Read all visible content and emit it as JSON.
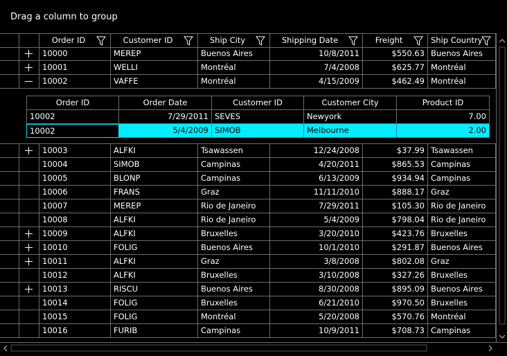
{
  "group_drop_area": "Drag a column to group",
  "grid": {
    "columns": [
      "Order ID",
      "Customer ID",
      "Ship City",
      "Shipping Date",
      "Freight",
      "Ship Country"
    ],
    "rows": [
      {
        "expandable": true,
        "cells": [
          "10000",
          "MEREP",
          "Buenos Aires",
          "10/8/2011",
          "$550.63",
          "Buenos Aires"
        ]
      },
      {
        "expandable": true,
        "cells": [
          "10001",
          "WELLI",
          "Montréal",
          "7/4/2008",
          "$625.77",
          "Montréal"
        ]
      },
      {
        "expandable": true,
        "expanded": true,
        "cells": [
          "10002",
          "VAFFE",
          "Montréal",
          "4/15/2009",
          "$462.49",
          "Montréal"
        ],
        "detail": {
          "columns": [
            "Order ID",
            "Order Date",
            "Customer ID",
            "Customer City",
            "Product ID"
          ],
          "rows": [
            {
              "cells": [
                "10002",
                "7/29/2011",
                "SEVES",
                "Newyork",
                "7.00"
              ]
            },
            {
              "selected": true,
              "cells": [
                "10002",
                "5/4/2009",
                "SIMOB",
                "Melbourne",
                "2.00"
              ]
            }
          ]
        }
      },
      {
        "expandable": true,
        "cells": [
          "10003",
          "ALFKI",
          "Tsawassen",
          "12/24/2008",
          "$37.99",
          "Tsawassen"
        ]
      },
      {
        "cells": [
          "10004",
          "SIMOB",
          "Campinas",
          "4/20/2011",
          "$865.53",
          "Campinas"
        ]
      },
      {
        "cells": [
          "10005",
          "BLONP",
          "Campinas",
          "6/13/2009",
          "$934.94",
          "Campinas"
        ]
      },
      {
        "cells": [
          "10006",
          "FRANS",
          "Graz",
          "11/11/2010",
          "$888.17",
          "Graz"
        ]
      },
      {
        "cells": [
          "10007",
          "MEREP",
          "Rio de Janeiro",
          "7/29/2011",
          "$105.30",
          "Rio de Janeiro"
        ]
      },
      {
        "cells": [
          "10008",
          "ALFKI",
          "Rio de Janeiro",
          "5/4/2009",
          "$798.04",
          "Rio de Janeiro"
        ]
      },
      {
        "expandable": true,
        "cells": [
          "10009",
          "ALFKI",
          "Bruxelles",
          "3/20/2010",
          "$423.76",
          "Bruxelles"
        ]
      },
      {
        "expandable": true,
        "cells": [
          "10010",
          "FOLIG",
          "Buenos Aires",
          "10/1/2010",
          "$291.87",
          "Buenos Aires"
        ]
      },
      {
        "expandable": true,
        "cells": [
          "10011",
          "ALFKI",
          "Graz",
          "3/8/2008",
          "$802.08",
          "Graz"
        ]
      },
      {
        "cells": [
          "10012",
          "ALFKI",
          "Bruxelles",
          "3/10/2008",
          "$327.26",
          "Bruxelles"
        ]
      },
      {
        "expandable": true,
        "cells": [
          "10013",
          "RISCU",
          "Buenos Aires",
          "8/30/2008",
          "$895.09",
          "Buenos Aires"
        ]
      },
      {
        "cells": [
          "10014",
          "FOLIG",
          "Bruxelles",
          "6/21/2010",
          "$970.50",
          "Bruxelles"
        ]
      },
      {
        "cells": [
          "10015",
          "FOLIG",
          "Montréal",
          "5/20/2008",
          "$570.76",
          "Montréal"
        ]
      },
      {
        "cells": [
          "10016",
          "FURIB",
          "Campinas",
          "10/9/2011",
          "$708.73",
          "Campinas"
        ]
      }
    ]
  }
}
